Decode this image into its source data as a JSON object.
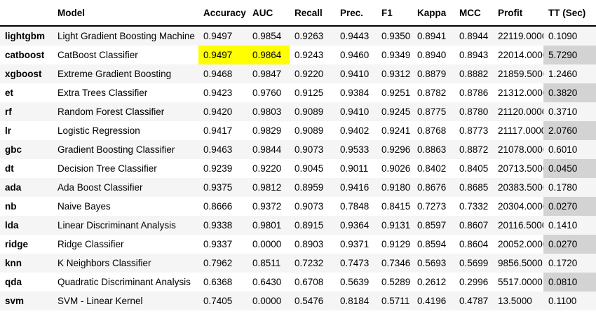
{
  "colors": {
    "highlight_yellow": "#ffff00",
    "tt_column_gray": "#d3d3d3",
    "row_stripe_gray": "#f5f5f5",
    "text_black": "#000000",
    "background_white": "#ffffff"
  },
  "chart_data": {
    "type": "table",
    "columns": [
      "",
      "Model",
      "Accuracy",
      "AUC",
      "Recall",
      "Prec.",
      "F1",
      "Kappa",
      "MCC",
      "Profit",
      "TT (Sec)"
    ],
    "metric_columns": [
      "Accuracy",
      "AUC",
      "Recall",
      "Prec.",
      "F1",
      "Kappa",
      "MCC",
      "Profit",
      "TT (Sec)"
    ],
    "rows": [
      {
        "index": "lightgbm",
        "model": "Light Gradient Boosting Machine",
        "metrics": [
          "0.9497",
          "0.9854",
          "0.9263",
          "0.9443",
          "0.9350",
          "0.8941",
          "0.8944",
          "22119.0000",
          "0.1090"
        ],
        "highlighted_metrics": [
          0,
          2,
          4,
          5,
          6,
          7
        ]
      },
      {
        "index": "catboost",
        "model": "CatBoost Classifier",
        "metrics": [
          "0.9497",
          "0.9864",
          "0.9243",
          "0.9460",
          "0.9349",
          "0.8940",
          "0.8943",
          "22014.0000",
          "5.7290"
        ],
        "highlighted_metrics": [
          0,
          1
        ]
      },
      {
        "index": "xgboost",
        "model": "Extreme Gradient Boosting",
        "metrics": [
          "0.9468",
          "0.9847",
          "0.9220",
          "0.9410",
          "0.9312",
          "0.8879",
          "0.8882",
          "21859.5000",
          "1.2460"
        ],
        "highlighted_metrics": []
      },
      {
        "index": "et",
        "model": "Extra Trees Classifier",
        "metrics": [
          "0.9423",
          "0.9760",
          "0.9125",
          "0.9384",
          "0.9251",
          "0.8782",
          "0.8786",
          "21312.0000",
          "0.3820"
        ],
        "highlighted_metrics": []
      },
      {
        "index": "rf",
        "model": "Random Forest Classifier",
        "metrics": [
          "0.9420",
          "0.9803",
          "0.9089",
          "0.9410",
          "0.9245",
          "0.8775",
          "0.8780",
          "21120.0000",
          "0.3710"
        ],
        "highlighted_metrics": []
      },
      {
        "index": "lr",
        "model": "Logistic Regression",
        "metrics": [
          "0.9417",
          "0.9829",
          "0.9089",
          "0.9402",
          "0.9241",
          "0.8768",
          "0.8773",
          "21117.0000",
          "2.0760"
        ],
        "highlighted_metrics": []
      },
      {
        "index": "gbc",
        "model": "Gradient Boosting Classifier",
        "metrics": [
          "0.9463",
          "0.9844",
          "0.9073",
          "0.9533",
          "0.9296",
          "0.8863",
          "0.8872",
          "21078.0000",
          "0.6010"
        ],
        "highlighted_metrics": [
          3
        ]
      },
      {
        "index": "dt",
        "model": "Decision Tree Classifier",
        "metrics": [
          "0.9239",
          "0.9220",
          "0.9045",
          "0.9011",
          "0.9026",
          "0.8402",
          "0.8405",
          "20713.5000",
          "0.0450"
        ],
        "highlighted_metrics": []
      },
      {
        "index": "ada",
        "model": "Ada Boost Classifier",
        "metrics": [
          "0.9375",
          "0.9812",
          "0.8959",
          "0.9416",
          "0.9180",
          "0.8676",
          "0.8685",
          "20383.5000",
          "0.1780"
        ],
        "highlighted_metrics": []
      },
      {
        "index": "nb",
        "model": "Naive Bayes",
        "metrics": [
          "0.8666",
          "0.9372",
          "0.9073",
          "0.7848",
          "0.8415",
          "0.7273",
          "0.7332",
          "20304.0000",
          "0.0270"
        ],
        "highlighted_metrics": []
      },
      {
        "index": "lda",
        "model": "Linear Discriminant Analysis",
        "metrics": [
          "0.9338",
          "0.9801",
          "0.8915",
          "0.9364",
          "0.9131",
          "0.8597",
          "0.8607",
          "20116.5000",
          "0.1410"
        ],
        "highlighted_metrics": []
      },
      {
        "index": "ridge",
        "model": "Ridge Classifier",
        "metrics": [
          "0.9337",
          "0.0000",
          "0.8903",
          "0.9371",
          "0.9129",
          "0.8594",
          "0.8604",
          "20052.0000",
          "0.0270"
        ],
        "highlighted_metrics": []
      },
      {
        "index": "knn",
        "model": "K Neighbors Classifier",
        "metrics": [
          "0.7962",
          "0.8511",
          "0.7232",
          "0.7473",
          "0.7346",
          "0.5693",
          "0.5699",
          "9856.5000",
          "0.1720"
        ],
        "highlighted_metrics": []
      },
      {
        "index": "qda",
        "model": "Quadratic Discriminant Analysis",
        "metrics": [
          "0.6368",
          "0.6430",
          "0.6708",
          "0.5639",
          "0.5289",
          "0.2612",
          "0.2996",
          "5517.0000",
          "0.0810"
        ],
        "highlighted_metrics": []
      },
      {
        "index": "svm",
        "model": "SVM - Linear Kernel",
        "metrics": [
          "0.7405",
          "0.0000",
          "0.5476",
          "0.8184",
          "0.5711",
          "0.4196",
          "0.4787",
          "13.5000",
          "0.1100"
        ],
        "highlighted_metrics": []
      }
    ],
    "layout": {
      "striped_rows": "odd",
      "highlight_meaning": "best value per metric column",
      "tt_column_shaded": true
    }
  }
}
